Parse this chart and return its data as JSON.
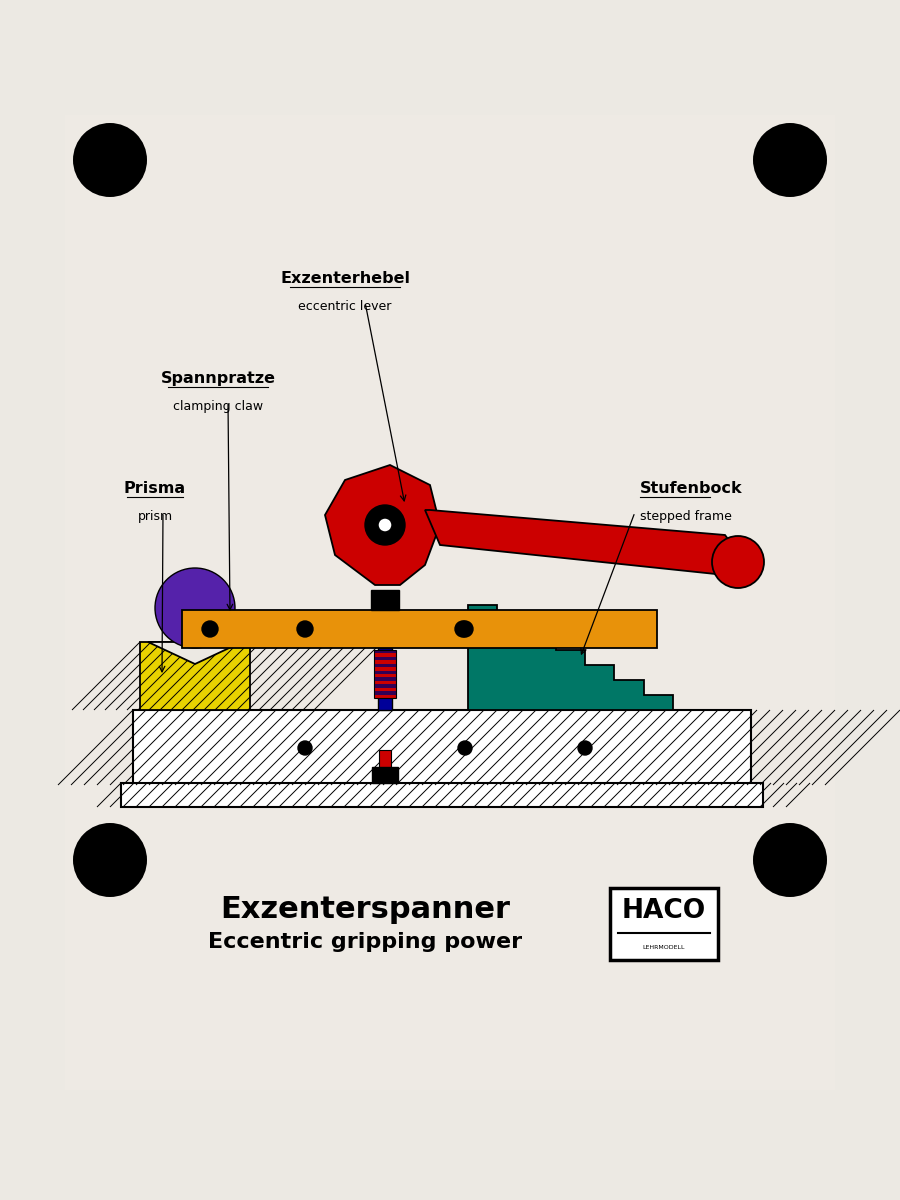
{
  "bg_color": "#ece9e3",
  "title1": "Exzenterspanner",
  "title2": "Eccentric gripping power",
  "label_eccentric": "Exzenterhebel",
  "label_eccentric_en": "eccentric lever",
  "label_clamp": "Spannpratze",
  "label_clamp_en": "clamping claw",
  "label_prism": "Prisma",
  "label_prism_en": "prism",
  "label_frame": "Stufenbock",
  "label_frame_en": "stepped frame",
  "color_lever": "#cc0000",
  "color_clamp_bar": "#e8920a",
  "color_prism": "#e8d200",
  "color_ball": "#5522aa",
  "color_stepped": "#007766",
  "color_base": "#ffffff",
  "color_spring_red": "#cc0000",
  "color_spring_dark": "#330055",
  "color_black": "#000000",
  "haco_text": "HACO"
}
